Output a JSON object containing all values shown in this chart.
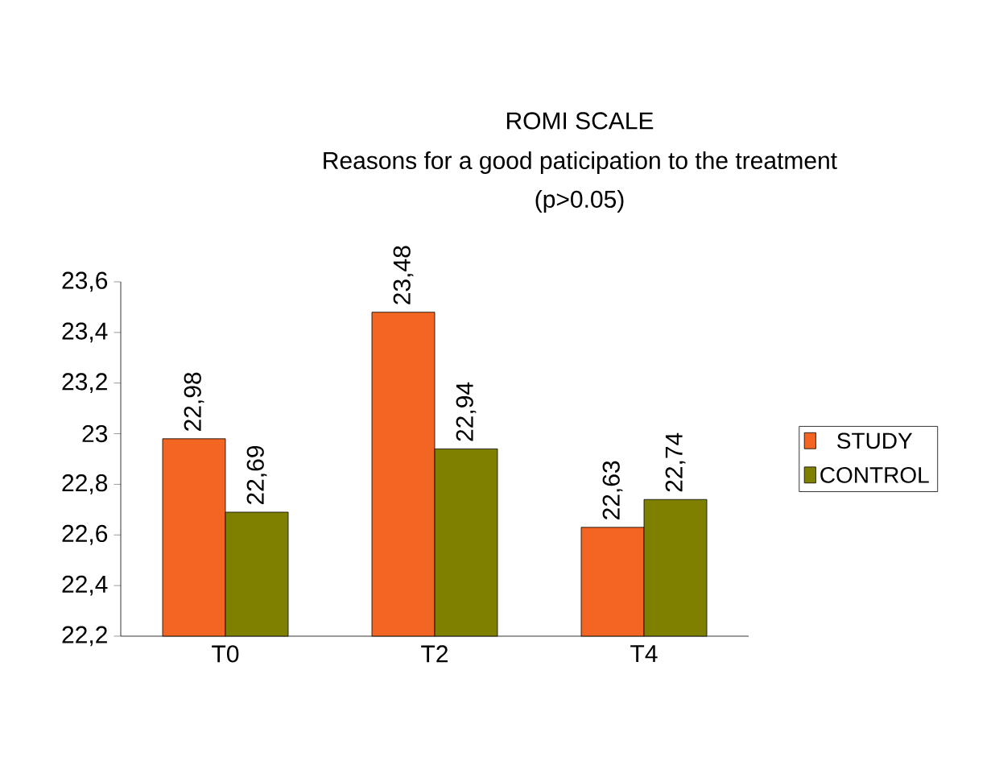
{
  "chart_data": {
    "type": "bar",
    "title": "ROMI SCALE",
    "subtitle": "Reasons for a good paticipation to the treatment",
    "annotations": [
      "(p>0.05)"
    ],
    "categories": [
      "T0",
      "T2",
      "T4"
    ],
    "series": [
      {
        "name": "STUDY",
        "color": "#f26522",
        "values": [
          22.98,
          23.48,
          22.63
        ],
        "value_labels": [
          "22,98",
          "23,48",
          "22,63"
        ]
      },
      {
        "name": "CONTROL",
        "color": "#808000",
        "values": [
          22.69,
          22.94,
          22.74
        ],
        "value_labels": [
          "22,69",
          "22,94",
          "22,74"
        ]
      }
    ],
    "ylim": [
      22.2,
      23.6
    ],
    "yticks": [
      {
        "value": 22.2,
        "label": "22,2"
      },
      {
        "value": 22.4,
        "label": "22,4"
      },
      {
        "value": 22.6,
        "label": "22,6"
      },
      {
        "value": 22.8,
        "label": "22,8"
      },
      23,
      {
        "value": 23.2,
        "label": "23,2"
      },
      {
        "value": 23.4,
        "label": "23,4"
      },
      {
        "value": 23.6,
        "label": "23,6"
      }
    ],
    "legend": "right"
  }
}
